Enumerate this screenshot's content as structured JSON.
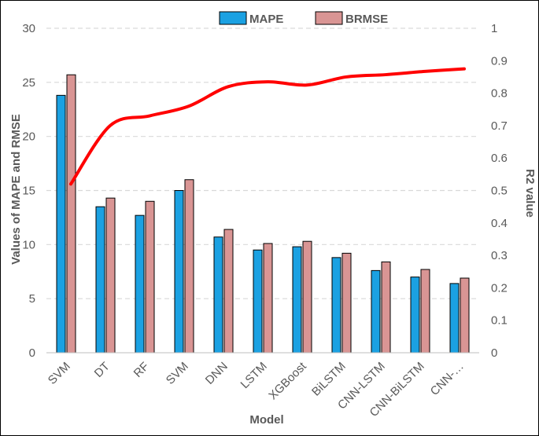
{
  "chart_data": {
    "type": "bar",
    "categories": [
      "SVM",
      "DT",
      "RF",
      "SVM",
      "DNN",
      "LSTM",
      "XGBoost",
      "BiLSTM",
      "CNN-LSTM",
      "CNN-BiLSTM",
      "CNN-…"
    ],
    "series": [
      {
        "name": "MAPE",
        "values": [
          23.8,
          13.5,
          12.7,
          15.0,
          10.7,
          9.5,
          9.8,
          8.8,
          7.6,
          7.0,
          6.4
        ],
        "color": "#1ba1e2"
      },
      {
        "name": "BRMSE",
        "values": [
          25.7,
          14.3,
          14.0,
          16.0,
          11.4,
          10.1,
          10.3,
          9.2,
          8.4,
          7.7,
          6.9
        ],
        "color": "#d99594"
      }
    ],
    "line_series": {
      "name": "R2",
      "values": [
        0.52,
        0.7,
        0.73,
        0.76,
        0.82,
        0.835,
        0.825,
        0.85,
        0.857,
        0.867,
        0.875
      ],
      "color": "#ff0000",
      "axis": "right"
    },
    "title": "",
    "xlabel": "Model",
    "ylabel": "Values of MAPE and RMSE",
    "y2label": "R2  value",
    "ylim": [
      0,
      30
    ],
    "y2lim": [
      0,
      1
    ],
    "yticks": [
      "0",
      "5",
      "10",
      "15",
      "20",
      "25",
      "30"
    ],
    "y2ticks": [
      "0",
      "0.1",
      "0.2",
      "0.3",
      "0.4",
      "0.5",
      "0.6",
      "0.7",
      "0.8",
      "0.9",
      "1"
    ],
    "grid": true,
    "legend_position": "top"
  }
}
